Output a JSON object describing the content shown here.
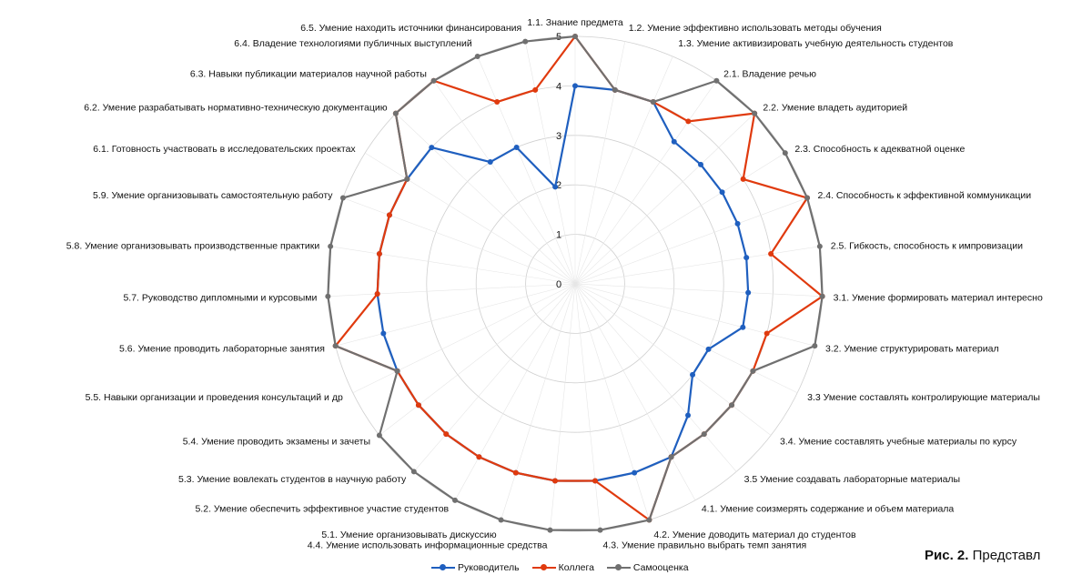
{
  "chart_data": {
    "type": "radar",
    "title": "",
    "rlim": [
      0,
      5
    ],
    "ticks": [
      "0",
      "1",
      "2",
      "3",
      "4",
      "5"
    ],
    "categories": [
      "1.1. Знание предмета",
      "1.2. Умение эффективно использовать методы обучения",
      "1.3. Умение активизировать учебную деятельность студентов",
      "2.1. Владение речью",
      "2.2. Умение владеть аудиторией",
      "2.3. Способность к адекватной оценке",
      "2.4. Способность к эффективной коммуникации",
      "2.5. Гибкость, способность к импровизации",
      "3.1. Умение формировать материал интересно",
      "3.2. Умение структурировать материал",
      "3.3 Умение составлять  контролирующие материалы",
      "3.4. Умение составлять учебные материалы по курсу",
      "3.5 Умение создавать лабораторные материалы",
      "4.1. Умение соизмерять содержание и объем материала",
      "4.2. Умение доводить материал до студентов",
      "4.3. Умение правильно выбрать темп занятия",
      "4.4. Умение  использовать информационные средства",
      "5.1. Умение организовывать дискуссию",
      "5.2. Умение обеспечить эффективное участие студентов",
      "5.3. Умение вовлекать студентов в научную работу",
      "5.4. Умение проводить экзамены и зачеты",
      "5.5. Навыки организации и проведения консультаций и др",
      "5.6. Умение проводить лабораторные занятия",
      "5.7. Руководство дипломными и курсовыми",
      "5.8. Умение организовывать производственные практики",
      "5.9. Умение организовывать самостоятельную работу",
      "6.1. Готовность участвовать в исследовательских проектах",
      "6.2. Умение разрабатывать нормативно-техническую документацию",
      "6.3. Навыки публикации материалов научной работы",
      "6.4. Владение технологиями публичных выступлений",
      "6.5. Умение находить  источники финансирования"
    ],
    "series": [
      {
        "name": "Руководитель",
        "color": "#1f5fbf",
        "values": [
          4,
          4,
          4,
          3.5,
          3.5,
          3.5,
          3.5,
          3.5,
          3.5,
          3.5,
          3,
          3,
          3.5,
          4,
          4,
          4,
          4,
          4,
          4,
          4,
          4,
          4,
          4,
          4,
          4,
          4,
          4,
          4,
          3,
          3,
          2
        ]
      },
      {
        "name": "Коллега",
        "color": "#e03a0e",
        "values": [
          5,
          4,
          4,
          4,
          5,
          4,
          5,
          4,
          5,
          4,
          4,
          4,
          4,
          4,
          5,
          4,
          4,
          4,
          4,
          4,
          4,
          4,
          5,
          4,
          4,
          4,
          4,
          5,
          5,
          4,
          4
        ]
      },
      {
        "name": "Самооценка",
        "color": "#707070",
        "values": [
          5,
          4,
          4,
          5,
          5,
          5,
          5,
          5,
          5,
          5,
          4,
          4,
          4,
          4,
          5,
          5,
          5,
          5,
          5,
          5,
          5,
          4,
          5,
          5,
          5,
          5,
          4,
          5,
          5,
          5,
          5
        ]
      }
    ],
    "legend_position": "bottom"
  },
  "caption": {
    "prefix": "Рис. 2.",
    "text": " Представл"
  }
}
